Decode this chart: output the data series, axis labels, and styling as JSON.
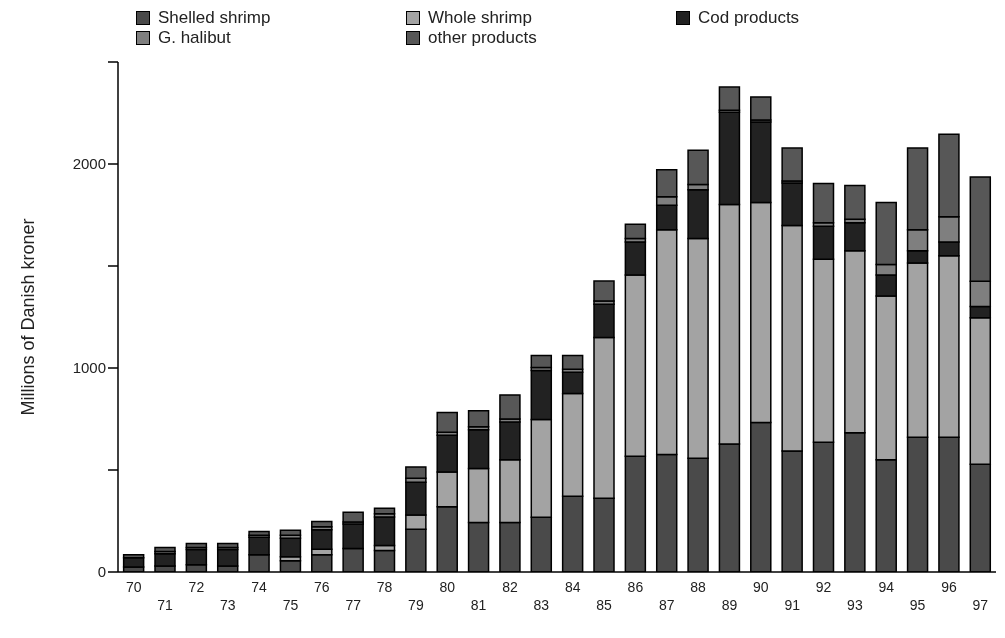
{
  "chart_data": {
    "type": "bar",
    "stacked": true,
    "ylabel": "Millions of Danish kroner",
    "categories": [
      "70",
      "71",
      "72",
      "73",
      "74",
      "75",
      "76",
      "77",
      "78",
      "79",
      "80",
      "81",
      "82",
      "83",
      "84",
      "85",
      "86",
      "87",
      "88",
      "89",
      "90",
      "91",
      "92",
      "93",
      "94",
      "95",
      "96",
      "97"
    ],
    "series": [
      {
        "name": "Shelled shrimp",
        "color": "#4a4a4a",
        "values": [
          25,
          30,
          35,
          30,
          85,
          55,
          85,
          115,
          105,
          210,
          320,
          243,
          243,
          268,
          371,
          362,
          567,
          576,
          558,
          627,
          733,
          593,
          636,
          683,
          550,
          661,
          661,
          528
        ]
      },
      {
        "name": "Whole shrimp",
        "color": "#a3a3a3",
        "values": [
          0,
          0,
          0,
          0,
          0,
          20,
          27,
          0,
          25,
          70,
          170,
          264,
          307,
          479,
          504,
          787,
          889,
          1102,
          1077,
          1174,
          1078,
          1106,
          897,
          892,
          803,
          854,
          889,
          718
        ]
      },
      {
        "name": "Cod products",
        "color": "#222222",
        "values": [
          45,
          60,
          75,
          80,
          85,
          90,
          95,
          120,
          140,
          160,
          180,
          190,
          185,
          241,
          104,
          164,
          162,
          120,
          239,
          453,
          395,
          208,
          162,
          137,
          103,
          60,
          68,
          56
        ]
      },
      {
        "name": "G. halibut",
        "color": "#7f7f7f",
        "values": [
          null,
          10,
          10,
          10,
          10,
          15,
          15,
          10,
          15,
          20,
          15,
          15,
          15,
          15,
          15,
          15,
          17,
          42,
          26,
          10,
          10,
          10,
          17,
          17,
          51,
          103,
          123,
          123
        ]
      },
      {
        "name": "other products",
        "color": "#575757",
        "values": [
          15,
          20,
          20,
          20,
          18,
          25,
          25,
          48,
          27,
          55,
          97,
          79,
          118,
          58,
          67,
          98,
          70,
          132,
          168,
          113,
          113,
          161,
          193,
          166,
          304,
          400,
          405,
          511
        ]
      }
    ],
    "ylim": [
      0,
      2500
    ],
    "yticks": [
      0,
      {
        "value": 500,
        "label": null
      },
      1000,
      {
        "value": 1500,
        "label": null
      },
      2000,
      {
        "value": 2500,
        "label": null
      }
    ],
    "grid": false,
    "legend": "top"
  }
}
